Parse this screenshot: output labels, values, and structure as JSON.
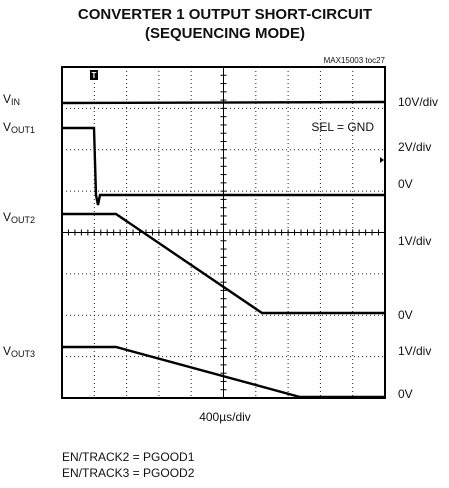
{
  "title": [
    "CONVERTER 1 OUTPUT SHORT-CIRCUIT",
    "(SEQUENCING MODE)"
  ],
  "reference": "MAX15003 toc27",
  "left_labels": [
    {
      "base": "V",
      "sub": "IN"
    },
    {
      "base": "V",
      "sub": "OUT1"
    },
    {
      "base": "V",
      "sub": "OUT2"
    },
    {
      "base": "V",
      "sub": "OUT3"
    }
  ],
  "right_labels": [
    "10V/div",
    "2V/div",
    "0V",
    "1V/div",
    "0V",
    "1V/div",
    "0V"
  ],
  "annotation": "SEL = GND",
  "trigger": "T",
  "time_scale": "400µs/div",
  "notes": [
    "EN/TRACK2 = PGOOD1",
    "EN/TRACK3 = PGOOD2"
  ]
}
